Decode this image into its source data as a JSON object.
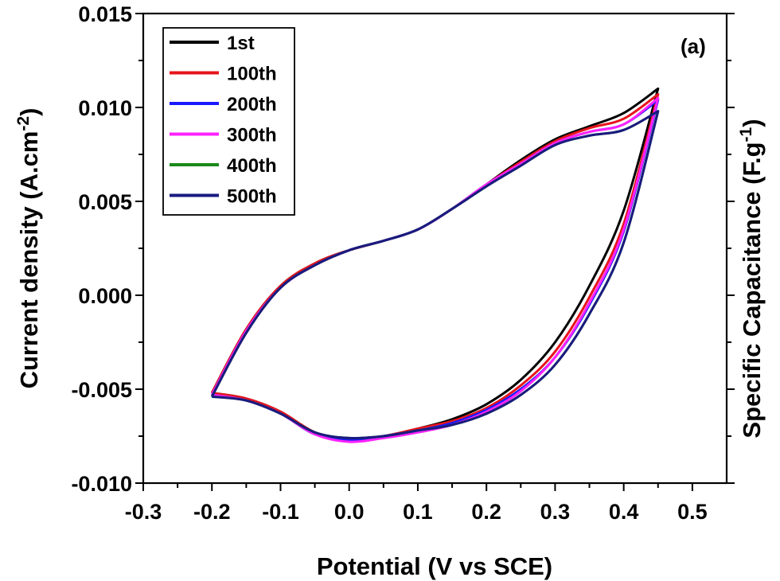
{
  "chart_data": {
    "type": "line",
    "panel_label": "(a)",
    "xlabel": "Potential (V vs SCE)",
    "ylabel": {
      "main": "Current density (A.cm",
      "sup": "-2",
      "tail": ")"
    },
    "y2label": {
      "main": "Specific Capacitance (F.g",
      "sup": "-1",
      "tail": ")"
    },
    "xlim": [
      -0.3,
      0.55
    ],
    "ylim": [
      -0.01,
      0.015
    ],
    "xticks": [
      -0.3,
      -0.2,
      -0.1,
      0.0,
      0.1,
      0.2,
      0.3,
      0.4,
      0.5
    ],
    "xtick_labels": [
      "-0.3",
      "-0.2",
      "-0.1",
      "0.0",
      "0.1",
      "0.2",
      "0.3",
      "0.4",
      "0.5"
    ],
    "yticks": [
      -0.01,
      -0.005,
      0.0,
      0.005,
      0.01,
      0.015
    ],
    "ytick_labels": [
      "-0.010",
      "-0.005",
      "0.000",
      "0.005",
      "0.010",
      "0.015"
    ],
    "legend_position": "top-left",
    "grid": false,
    "x_anodic": [
      -0.2,
      -0.15,
      -0.1,
      -0.05,
      0.0,
      0.05,
      0.1,
      0.15,
      0.2,
      0.25,
      0.3,
      0.35,
      0.4,
      0.45
    ],
    "x_cathodic": [
      0.45,
      0.4,
      0.35,
      0.3,
      0.25,
      0.2,
      0.15,
      0.1,
      0.05,
      0.0,
      -0.05,
      -0.1,
      -0.15,
      -0.2
    ],
    "series": [
      {
        "name": "1st",
        "color": "#000000",
        "anodic": [
          -0.0052,
          -0.0018,
          0.0005,
          0.0017,
          0.0024,
          0.0029,
          0.0035,
          0.0046,
          0.0059,
          0.0072,
          0.0083,
          0.009,
          0.0097,
          0.011
        ],
        "cathodic": [
          0.011,
          0.0045,
          0.0005,
          -0.0025,
          -0.0045,
          -0.0058,
          -0.0066,
          -0.0071,
          -0.0075,
          -0.0077,
          -0.0073,
          -0.0062,
          -0.0055,
          -0.0052
        ]
      },
      {
        "name": "100th",
        "color": "#e8141c",
        "anodic": [
          -0.0052,
          -0.0018,
          0.0005,
          0.0017,
          0.0024,
          0.0029,
          0.0035,
          0.0046,
          0.0059,
          0.0071,
          0.0082,
          0.0089,
          0.0094,
          0.0107
        ],
        "cathodic": [
          0.0107,
          0.0038,
          -0.0001,
          -0.003,
          -0.0048,
          -0.006,
          -0.0067,
          -0.0071,
          -0.0075,
          -0.0077,
          -0.0073,
          -0.0062,
          -0.0055,
          -0.0052
        ]
      },
      {
        "name": "200th",
        "color": "#1a1aff",
        "anodic": [
          -0.0053,
          -0.0019,
          0.0004,
          0.0016,
          0.0024,
          0.0029,
          0.0035,
          0.0046,
          0.0059,
          0.007,
          0.0081,
          0.0087,
          0.0091,
          0.0104
        ],
        "cathodic": [
          0.0104,
          0.0034,
          -0.0005,
          -0.0033,
          -0.005,
          -0.0061,
          -0.0068,
          -0.0072,
          -0.0075,
          -0.0077,
          -0.0074,
          -0.0063,
          -0.0056,
          -0.0053
        ]
      },
      {
        "name": "300th",
        "color": "#ff22ff",
        "anodic": [
          -0.0053,
          -0.0019,
          0.0004,
          0.0016,
          0.0024,
          0.0029,
          0.0035,
          0.0046,
          0.0059,
          0.007,
          0.0081,
          0.0087,
          0.0091,
          0.0105
        ],
        "cathodic": [
          0.0105,
          0.0035,
          -0.0004,
          -0.0033,
          -0.0051,
          -0.0062,
          -0.0069,
          -0.0073,
          -0.0076,
          -0.0078,
          -0.0074,
          -0.0063,
          -0.0056,
          -0.0053
        ]
      },
      {
        "name": "400th",
        "color": "#1a8a1a",
        "anodic": [
          -0.0054,
          -0.002,
          0.0004,
          0.0016,
          0.0024,
          0.0029,
          0.0035,
          0.0046,
          0.0058,
          0.0069,
          0.008,
          0.0085,
          0.0088,
          0.0098
        ],
        "cathodic": [
          0.0098,
          0.0028,
          -0.001,
          -0.0037,
          -0.0053,
          -0.0063,
          -0.0069,
          -0.0072,
          -0.0075,
          -0.0076,
          -0.0073,
          -0.0063,
          -0.0056,
          -0.0054
        ]
      },
      {
        "name": "500th",
        "color": "#1a1a80",
        "anodic": [
          -0.0054,
          -0.002,
          0.0004,
          0.0016,
          0.0024,
          0.0029,
          0.0035,
          0.0046,
          0.0058,
          0.0069,
          0.008,
          0.0085,
          0.0088,
          0.0098
        ],
        "cathodic": [
          0.0098,
          0.0028,
          -0.001,
          -0.0037,
          -0.0053,
          -0.0063,
          -0.0069,
          -0.0072,
          -0.0075,
          -0.0076,
          -0.0073,
          -0.0063,
          -0.0056,
          -0.0054
        ]
      }
    ]
  }
}
